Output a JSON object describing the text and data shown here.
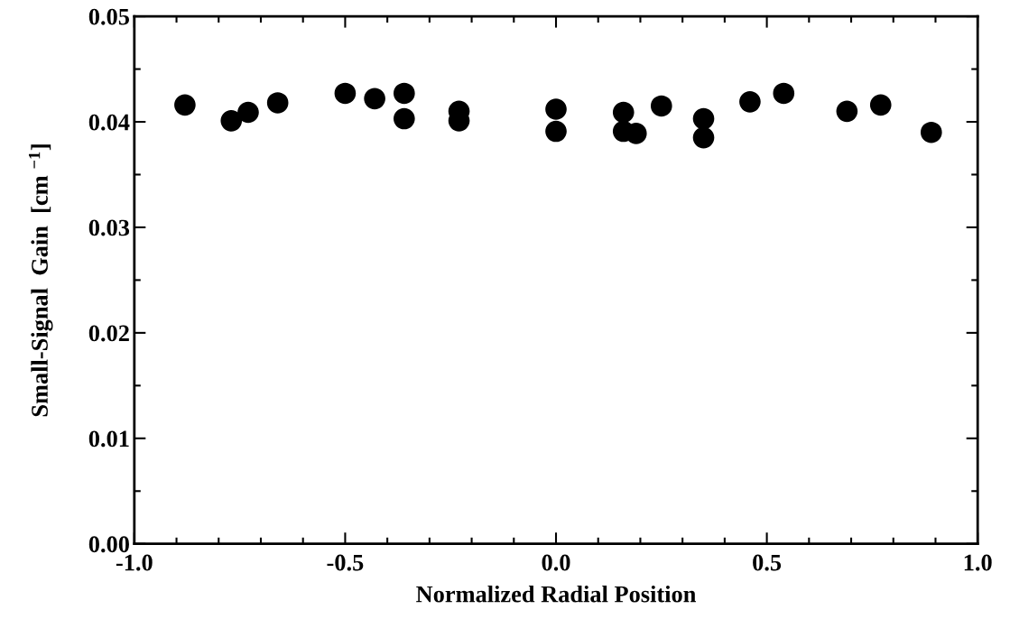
{
  "chart_data": {
    "type": "scatter",
    "xlabel": "Normalized Radial Position",
    "ylabel": "Small-Signal  Gain  [cm $^{−1}$]",
    "x": [
      -0.88,
      -0.77,
      -0.73,
      -0.66,
      -0.5,
      -0.43,
      -0.36,
      -0.36,
      -0.23,
      -0.23,
      0.0,
      0.0,
      0.16,
      0.16,
      0.19,
      0.25,
      0.35,
      0.35,
      0.46,
      0.54,
      0.69,
      0.77,
      0.89
    ],
    "series": [
      {
        "color": "#000000",
        "values": [
          0.0416,
          0.0401,
          0.0409,
          0.0418,
          0.0427,
          0.0422,
          0.0427,
          0.0403,
          0.041,
          0.0401,
          0.0412,
          0.0391,
          0.0409,
          0.0391,
          0.0389,
          0.0415,
          0.0403,
          0.0385,
          0.0419,
          0.0427,
          0.041,
          0.0416,
          0.039
        ]
      }
    ],
    "xlim": [
      -1.0,
      1.0
    ],
    "xticks": [
      {
        "value": -1.0,
        "label": "-1.0"
      },
      {
        "value": -0.5,
        "label": "-0.5"
      },
      {
        "value": 0.0,
        "label": "0.0"
      },
      {
        "value": 0.5,
        "label": "0.5"
      },
      {
        "value": 1.0,
        "label": "1.0"
      }
    ],
    "ylim": [
      0.0,
      0.05
    ],
    "yticks": [
      {
        "value": 0.0,
        "label": "0.00"
      },
      {
        "value": 0.01,
        "label": "0.01"
      },
      {
        "value": 0.02,
        "label": "0.02"
      },
      {
        "value": 0.03,
        "label": "0.03"
      },
      {
        "value": 0.04,
        "label": "0.04"
      },
      {
        "value": 0.05,
        "label": "0.05"
      }
    ],
    "grid": false,
    "marker": "circle"
  }
}
